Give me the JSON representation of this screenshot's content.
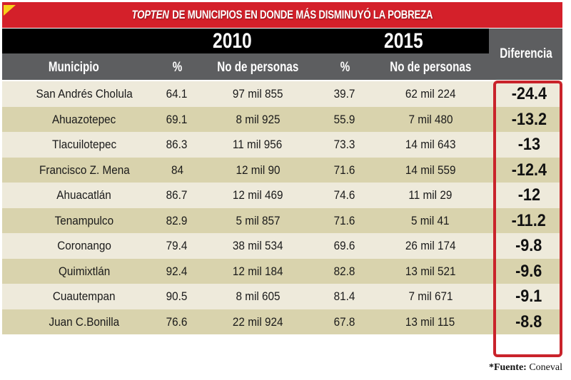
{
  "title": {
    "emphasis": "TOPTEN",
    "rest": "DE MUNICIPIOS EN DONDE MÁS DISMINUYÓ LA POBREZA",
    "accent_color": "#d4202a",
    "corner_icon": "yellow-triangle"
  },
  "years": {
    "first": "2010",
    "second": "2015"
  },
  "headers": {
    "municipio": "Municipio",
    "pct_2010": "%",
    "personas_2010": "No de personas",
    "pct_2015": "%",
    "personas_2015": "No de personas",
    "diferencia": "Diferencia"
  },
  "rows": [
    {
      "municipio": "San Andrés Cholula",
      "pct_2010": "64.1",
      "personas_2010": "97 mil 855",
      "pct_2015": "39.7",
      "personas_2015": "62 mil 224",
      "diferencia": "-24.4"
    },
    {
      "municipio": "Ahuazotepec",
      "pct_2010": "69.1",
      "personas_2010": "8 mil 925",
      "pct_2015": "55.9",
      "personas_2015": "7 mil 480",
      "diferencia": "-13.2"
    },
    {
      "municipio": "Tlacuilotepec",
      "pct_2010": "86.3",
      "personas_2010": "11 mil 956",
      "pct_2015": "73.3",
      "personas_2015": "14 mil 643",
      "diferencia": "-13"
    },
    {
      "municipio": "Francisco Z. Mena",
      "pct_2010": "84",
      "personas_2010": "12 mil 90",
      "pct_2015": "71.6",
      "personas_2015": "14 mil 559",
      "diferencia": "-12.4"
    },
    {
      "municipio": "Ahuacatlán",
      "pct_2010": "86.7",
      "personas_2010": "12 mil 469",
      "pct_2015": "74.6",
      "personas_2015": "11 mil 29",
      "diferencia": "-12"
    },
    {
      "municipio": "Tenampulco",
      "pct_2010": "82.9",
      "personas_2010": "5 mil 857",
      "pct_2015": "71.6",
      "personas_2015": "5 mil 41",
      "diferencia": "-11.2"
    },
    {
      "municipio": "Coronango",
      "pct_2010": "79.4",
      "personas_2010": "38 mil 534",
      "pct_2015": "69.6",
      "personas_2015": "26 mil 174",
      "diferencia": "-9.8"
    },
    {
      "municipio": "Quimixtlán",
      "pct_2010": "92.4",
      "personas_2010": "12 mil 184",
      "pct_2015": "82.8",
      "personas_2015": "13 mil 521",
      "diferencia": "-9.6"
    },
    {
      "municipio": "Cuautempan",
      "pct_2010": "90.5",
      "personas_2010": "8 mil 605",
      "pct_2015": "81.4",
      "personas_2015": "7 mil 671",
      "diferencia": "-9.1"
    },
    {
      "municipio": "Juan C.Bonilla",
      "pct_2010": "76.6",
      "personas_2010": "22 mil 924",
      "pct_2015": "67.8",
      "personas_2015": "13 mil 115",
      "diferencia": "-8.8"
    }
  ],
  "source": {
    "label": "*Fuente:",
    "value": "Coneval"
  }
}
